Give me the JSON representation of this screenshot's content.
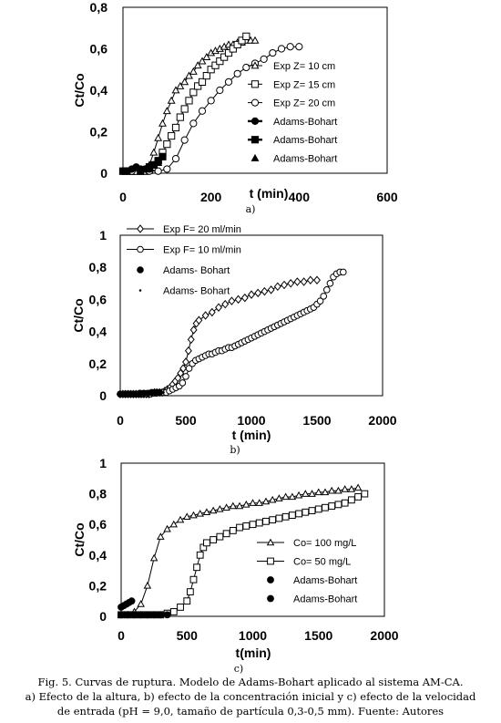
{
  "chart_data": [
    {
      "type": "scatter",
      "xlabel": "t (min)",
      "ylabel": "Ct/Co",
      "xlim": [
        0,
        600
      ],
      "ylim": [
        0,
        0.8
      ],
      "xticks": [
        "0",
        "200",
        "400",
        "600"
      ],
      "yticks": [
        "0",
        "0,2",
        "0,4",
        "0,6",
        "0,8"
      ],
      "panel_label": "a)",
      "legend_position": "right",
      "series": [
        {
          "name": "Exp Z= 10 cm",
          "marker": "triangle-open",
          "line": true,
          "x": [
            0,
            10,
            20,
            30,
            40,
            50,
            60,
            70,
            80,
            90,
            100,
            110,
            120,
            130,
            140,
            150,
            160,
            170,
            180,
            190,
            200,
            210,
            220,
            230,
            240,
            250,
            260,
            270,
            280,
            290,
            300
          ],
          "y": [
            0.01,
            0.01,
            0.01,
            0.01,
            0.01,
            0.015,
            0.04,
            0.1,
            0.17,
            0.24,
            0.3,
            0.35,
            0.4,
            0.42,
            0.44,
            0.47,
            0.49,
            0.52,
            0.54,
            0.56,
            0.58,
            0.59,
            0.6,
            0.61,
            0.62,
            0.62,
            0.63,
            0.63,
            0.64,
            0.64,
            0.64
          ]
        },
        {
          "name": "Exp Z= 15 cm",
          "marker": "square-open",
          "line": true,
          "x": [
            0,
            10,
            20,
            30,
            40,
            50,
            60,
            70,
            80,
            90,
            100,
            110,
            120,
            130,
            140,
            150,
            160,
            170,
            180,
            190,
            200,
            210,
            220,
            230,
            240,
            250,
            260,
            270,
            280
          ],
          "y": [
            0.01,
            0.01,
            0.01,
            0.01,
            0.01,
            0.01,
            0.015,
            0.03,
            0.06,
            0.1,
            0.14,
            0.18,
            0.22,
            0.27,
            0.31,
            0.35,
            0.39,
            0.42,
            0.44,
            0.47,
            0.5,
            0.52,
            0.54,
            0.56,
            0.58,
            0.6,
            0.62,
            0.64,
            0.66
          ]
        },
        {
          "name": "Exp Z= 20 cm",
          "marker": "circle-open",
          "line": true,
          "x": [
            0,
            20,
            40,
            60,
            80,
            100,
            120,
            140,
            160,
            180,
            200,
            220,
            240,
            260,
            280,
            300,
            320,
            340,
            360,
            380,
            400
          ],
          "y": [
            0.01,
            0.01,
            0.01,
            0.01,
            0.01,
            0.02,
            0.07,
            0.16,
            0.24,
            0.3,
            0.35,
            0.4,
            0.44,
            0.48,
            0.51,
            0.53,
            0.55,
            0.58,
            0.6,
            0.61,
            0.61
          ]
        },
        {
          "name": "Adams-Bohart",
          "marker": "circle-filled",
          "line": true,
          "x": [
            0,
            10,
            20,
            30,
            40,
            50,
            60
          ],
          "y": [
            0.01,
            0.01,
            0.02,
            0.03,
            0.02,
            0.02,
            0.02
          ]
        },
        {
          "name": "Adams-Bohart",
          "marker": "square-filled",
          "line": true,
          "x": [
            60,
            70,
            80,
            90
          ],
          "y": [
            0.03,
            0.04,
            0.06,
            0.08
          ]
        },
        {
          "name": "Adams-Bohart",
          "marker": "triangle-filled",
          "line": false,
          "x": [
            40,
            50,
            60,
            70,
            80
          ],
          "y": [
            0.01,
            0.02,
            0.03,
            0.04,
            0.05
          ]
        }
      ]
    },
    {
      "type": "scatter",
      "xlabel": "t (min)",
      "ylabel": "Ct/Co",
      "xlim": [
        0,
        2000
      ],
      "ylim": [
        0,
        1
      ],
      "xticks": [
        "0",
        "500",
        "1000",
        "1500",
        "2000"
      ],
      "yticks": [
        "0",
        "0,2",
        "0,4",
        "0,6",
        "0,8",
        "1"
      ],
      "panel_label": "b)",
      "legend_position": "top-left",
      "series": [
        {
          "name": "Exp F= 20 ml/min",
          "marker": "diamond-open",
          "line": true,
          "x": [
            0,
            20,
            40,
            60,
            80,
            100,
            120,
            140,
            160,
            180,
            200,
            220,
            240,
            260,
            280,
            300,
            320,
            340,
            360,
            380,
            400,
            420,
            440,
            460,
            480,
            500,
            520,
            540,
            560,
            580,
            600,
            650,
            700,
            750,
            800,
            850,
            900,
            950,
            1000,
            1050,
            1100,
            1150,
            1200,
            1250,
            1300,
            1350,
            1400,
            1450,
            1500
          ],
          "y": [
            0.01,
            0.01,
            0.01,
            0.01,
            0.01,
            0.01,
            0.01,
            0.01,
            0.01,
            0.01,
            0.01,
            0.01,
            0.015,
            0.02,
            0.02,
            0.02,
            0.02,
            0.03,
            0.04,
            0.05,
            0.07,
            0.09,
            0.11,
            0.14,
            0.17,
            0.21,
            0.28,
            0.35,
            0.41,
            0.45,
            0.47,
            0.5,
            0.52,
            0.55,
            0.57,
            0.59,
            0.6,
            0.61,
            0.63,
            0.64,
            0.65,
            0.66,
            0.68,
            0.69,
            0.7,
            0.71,
            0.71,
            0.72,
            0.72
          ]
        },
        {
          "name": "Exp F= 10 ml/min",
          "marker": "circle-open",
          "line": true,
          "x": [
            0,
            25,
            50,
            75,
            100,
            125,
            150,
            175,
            200,
            225,
            250,
            275,
            300,
            325,
            350,
            375,
            400,
            425,
            450,
            475,
            500,
            525,
            550,
            575,
            600,
            625,
            650,
            675,
            700,
            725,
            750,
            775,
            800,
            825,
            850,
            875,
            900,
            925,
            950,
            975,
            1000,
            1025,
            1050,
            1075,
            1100,
            1125,
            1150,
            1175,
            1200,
            1225,
            1250,
            1275,
            1300,
            1325,
            1350,
            1375,
            1400,
            1425,
            1450,
            1475,
            1500,
            1525,
            1550,
            1575,
            1600,
            1625,
            1650,
            1675,
            1700
          ],
          "y": [
            0.01,
            0.01,
            0.01,
            0.01,
            0.01,
            0.01,
            0.01,
            0.01,
            0.01,
            0.01,
            0.015,
            0.015,
            0.02,
            0.02,
            0.02,
            0.03,
            0.04,
            0.05,
            0.06,
            0.08,
            0.12,
            0.17,
            0.2,
            0.22,
            0.23,
            0.24,
            0.25,
            0.26,
            0.26,
            0.27,
            0.28,
            0.28,
            0.29,
            0.3,
            0.3,
            0.31,
            0.32,
            0.33,
            0.34,
            0.35,
            0.36,
            0.37,
            0.38,
            0.39,
            0.4,
            0.41,
            0.42,
            0.43,
            0.44,
            0.45,
            0.46,
            0.47,
            0.48,
            0.49,
            0.5,
            0.51,
            0.52,
            0.53,
            0.54,
            0.55,
            0.57,
            0.59,
            0.62,
            0.66,
            0.7,
            0.74,
            0.76,
            0.77,
            0.77
          ]
        },
        {
          "name": "Adams- Bohart",
          "marker": "circle-filled",
          "line": false,
          "x": [
            0,
            30,
            60,
            90,
            120,
            150,
            180,
            210,
            240,
            270,
            300
          ],
          "y": [
            0.01,
            0.01,
            0.01,
            0.01,
            0.01,
            0.015,
            0.015,
            0.015,
            0.02,
            0.02,
            0.02
          ]
        },
        {
          "name": "Adams- Bohart",
          "marker": "dot",
          "line": false,
          "x": [
            0,
            30,
            60,
            90,
            120,
            150,
            180,
            210,
            240,
            270,
            300,
            330
          ],
          "y": [
            0.01,
            0.01,
            0.01,
            0.01,
            0.01,
            0.01,
            0.015,
            0.015,
            0.015,
            0.02,
            0.02,
            0.02
          ]
        }
      ]
    },
    {
      "type": "scatter",
      "xlabel": "t(min)",
      "ylabel": "Ct/Co",
      "xlim": [
        0,
        2000
      ],
      "ylim": [
        0,
        1
      ],
      "xticks": [
        "0",
        "500",
        "1000",
        "1500",
        "2000"
      ],
      "yticks": [
        "0",
        "0,2",
        "0,4",
        "0,6",
        "0,8",
        "1"
      ],
      "panel_label": "c)",
      "legend_position": "bottom-right",
      "series": [
        {
          "name": "Co= 100 mg/L",
          "marker": "triangle-open",
          "line": true,
          "x": [
            0,
            50,
            100,
            150,
            200,
            250,
            300,
            350,
            400,
            450,
            500,
            550,
            600,
            650,
            700,
            750,
            800,
            850,
            900,
            950,
            1000,
            1050,
            1100,
            1150,
            1200,
            1250,
            1300,
            1350,
            1400,
            1450,
            1500,
            1550,
            1600,
            1650,
            1700,
            1750,
            1800
          ],
          "y": [
            0.01,
            0.01,
            0.03,
            0.08,
            0.2,
            0.38,
            0.52,
            0.57,
            0.6,
            0.63,
            0.65,
            0.66,
            0.67,
            0.68,
            0.69,
            0.7,
            0.71,
            0.72,
            0.72,
            0.73,
            0.74,
            0.74,
            0.75,
            0.76,
            0.77,
            0.78,
            0.78,
            0.79,
            0.8,
            0.8,
            0.81,
            0.81,
            0.82,
            0.82,
            0.83,
            0.83,
            0.84
          ]
        },
        {
          "name": "Co= 50 mg/L",
          "marker": "square-open",
          "line": true,
          "x": [
            0,
            50,
            100,
            150,
            200,
            250,
            300,
            350,
            400,
            450,
            500,
            525,
            550,
            575,
            600,
            625,
            650,
            700,
            750,
            800,
            850,
            900,
            950,
            1000,
            1050,
            1100,
            1150,
            1200,
            1250,
            1300,
            1350,
            1400,
            1450,
            1500,
            1550,
            1600,
            1650,
            1700,
            1750,
            1800,
            1850
          ],
          "y": [
            0.01,
            0.01,
            0.01,
            0.01,
            0.01,
            0.01,
            0.01,
            0.02,
            0.03,
            0.06,
            0.1,
            0.16,
            0.24,
            0.32,
            0.4,
            0.45,
            0.48,
            0.5,
            0.52,
            0.54,
            0.56,
            0.58,
            0.59,
            0.6,
            0.61,
            0.62,
            0.63,
            0.64,
            0.65,
            0.66,
            0.67,
            0.68,
            0.69,
            0.7,
            0.71,
            0.72,
            0.73,
            0.74,
            0.76,
            0.78,
            0.8
          ]
        },
        {
          "name": "Adams-Bohart",
          "marker": "circle-filled",
          "line": false,
          "x": [
            0,
            20,
            40,
            60,
            80
          ],
          "y": [
            0.06,
            0.07,
            0.08,
            0.09,
            0.1
          ]
        },
        {
          "name": "Adams-Bohart",
          "marker": "circle-filled",
          "line": false,
          "x": [
            0,
            50,
            100,
            150,
            200,
            250,
            300,
            350
          ],
          "y": [
            0.01,
            0.01,
            0.01,
            0.01,
            0.01,
            0.01,
            0.01,
            0.01
          ]
        }
      ]
    }
  ],
  "caption": {
    "line1": "Fig. 5. Curvas de ruptura. Modelo de Adams-Bohart aplicado al sistema AM-CA.",
    "line2": "a) Efecto de la altura, b) efecto de la concentración inicial y c) efecto de la velocidad",
    "line3": "de entrada (pH = 9,0, tamaño de partícula 0,3-0,5 mm). Fuente: Autores"
  },
  "colors": {
    "ink": "#000000",
    "axis": "#000000",
    "background": "#ffffff"
  }
}
